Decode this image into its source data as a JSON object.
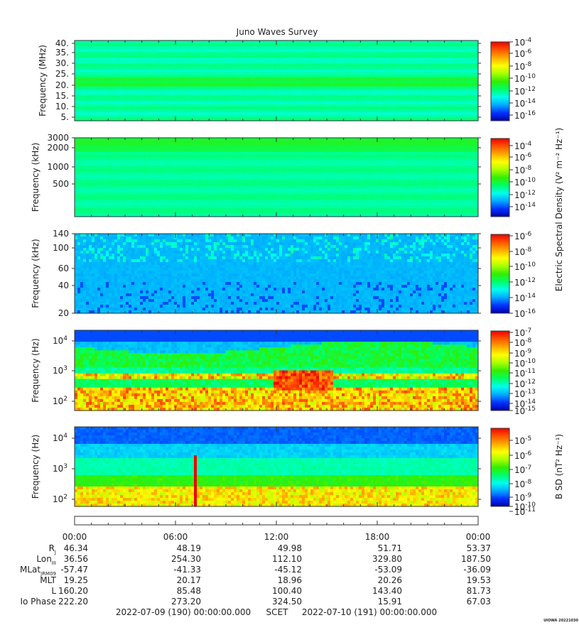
{
  "figure": {
    "title": "Juno Waves Survey",
    "watermark": "UIOWA 20221030",
    "footer": {
      "start": "2022-07-09 (190) 00:00:00.000",
      "label": "SCET",
      "end": "2022-07-10 (191) 00:00:00.000"
    },
    "colorbar_labels": {
      "electric": "Electric Spectral Density (V² m⁻² Hz⁻¹)",
      "magnetic": "B SD (nT² Hz⁻¹)"
    }
  },
  "colors": {
    "scale": [
      "#0000aa",
      "#0033ff",
      "#00aaff",
      "#00ffee",
      "#00ff66",
      "#33ee00",
      "#aaff00",
      "#ffff00",
      "#ffaa00",
      "#ff5500",
      "#ee0000"
    ]
  },
  "chart_data": [
    {
      "type": "heatmap",
      "title": "Juno Waves Survey",
      "ylabel": "Frequency (MHz)",
      "y_ticks": [
        "40.",
        "35.",
        "30.",
        "25.",
        "20.",
        "15.",
        "10.",
        "5."
      ],
      "ylim": [
        3.5,
        41
      ],
      "yscale": "linear",
      "colorbar": {
        "ticks": [
          {
            "base": "10",
            "exp": "-4"
          },
          {
            "base": "10",
            "exp": "-6"
          },
          {
            "base": "10",
            "exp": "-8"
          },
          {
            "base": "10",
            "exp": "-10"
          },
          {
            "base": "10",
            "exp": "-12"
          },
          {
            "base": "10",
            "exp": "-14"
          },
          {
            "base": "10",
            "exp": "-16"
          }
        ],
        "range_exponent": [
          -17,
          -4
        ]
      },
      "background_level": 0.35,
      "features": [
        {
          "desc": "band near 21 MHz",
          "freq": 21,
          "level": 0.45
        }
      ]
    },
    {
      "type": "heatmap",
      "ylabel": "Frequency (kHz)",
      "y_ticks": [
        "3000",
        "2000",
        "1000",
        "500"
      ],
      "yscale": "log",
      "colorbar": {
        "ticks": [
          {
            "base": "10",
            "exp": "-4"
          },
          {
            "base": "10",
            "exp": "-6"
          },
          {
            "base": "10",
            "exp": "-8"
          },
          {
            "base": "10",
            "exp": "-10"
          },
          {
            "base": "10",
            "exp": "-12"
          },
          {
            "base": "10",
            "exp": "-14"
          }
        ],
        "range_exponent": [
          -15,
          -3
        ]
      },
      "background_level": 0.36,
      "features": [
        {
          "desc": "band near 2000 kHz",
          "freq": 2000,
          "level": 0.44
        }
      ]
    },
    {
      "type": "heatmap",
      "ylabel": "Frequency (kHz)",
      "y_ticks": [
        "140",
        "100",
        "60",
        "40",
        "20"
      ],
      "ylim": [
        20,
        140
      ],
      "yscale": "linear",
      "colorbar": {
        "ticks": [
          {
            "base": "10",
            "exp": "-6"
          },
          {
            "base": "10",
            "exp": "-8"
          },
          {
            "base": "10",
            "exp": "-10"
          },
          {
            "base": "10",
            "exp": "-12"
          },
          {
            "base": "10",
            "exp": "-14"
          },
          {
            "base": "10",
            "exp": "-16"
          }
        ],
        "range_exponent": [
          -16,
          -6
        ]
      },
      "background_level": 0.2,
      "features": [
        {
          "desc": "bursts above 80 kHz",
          "level": 0.3
        }
      ]
    },
    {
      "type": "heatmap",
      "ylabel": "Frequency (Hz)",
      "y_ticks": [
        {
          "base": "10",
          "exp": "4"
        },
        {
          "base": "10",
          "exp": "3"
        },
        {
          "base": "10",
          "exp": "2"
        }
      ],
      "ylim": [
        50,
        20000
      ],
      "yscale": "log",
      "colorbar": {
        "ticks": [
          {
            "base": "10",
            "exp": "-7"
          },
          {
            "base": "10",
            "exp": "-8"
          },
          {
            "base": "10",
            "exp": "-9"
          },
          {
            "base": "10",
            "exp": "-10"
          },
          {
            "base": "10",
            "exp": "-11"
          },
          {
            "base": "10",
            "exp": "-12"
          },
          {
            "base": "10",
            "exp": "-13"
          },
          {
            "base": "10",
            "exp": "-14"
          },
          {
            "base": "10",
            "exp": "-15"
          }
        ],
        "range_exponent": [
          -15,
          -7
        ]
      },
      "features": [
        {
          "desc": "intense emission below 300 Hz",
          "level": 0.85
        },
        {
          "desc": "band near 700 Hz",
          "freq": 700,
          "level": 0.75
        },
        {
          "desc": "bursts near 500 Hz around 13:00-15:00",
          "level": 0.95
        }
      ]
    },
    {
      "type": "heatmap",
      "ylabel": "Frequency (Hz)",
      "y_ticks": [
        {
          "base": "10",
          "exp": "4"
        },
        {
          "base": "10",
          "exp": "3"
        },
        {
          "base": "10",
          "exp": "2"
        }
      ],
      "ylim": [
        50,
        20000
      ],
      "yscale": "log",
      "colorbar": {
        "ticks": [
          {
            "base": "10",
            "exp": "-5"
          },
          {
            "base": "10",
            "exp": "-6"
          },
          {
            "base": "10",
            "exp": "-7"
          },
          {
            "base": "10",
            "exp": "-8"
          },
          {
            "base": "10",
            "exp": "-9"
          },
          {
            "base": "10",
            "exp": "-10"
          },
          {
            "base": "10",
            "exp": "-11"
          }
        ],
        "range_exponent": [
          -11,
          -5
        ]
      },
      "features": [
        {
          "desc": "intense emission below 250 Hz",
          "level": 0.75
        },
        {
          "desc": "spike near 07:00",
          "level": 1.0
        }
      ]
    }
  ],
  "time_axis": {
    "ticks": [
      "00:00",
      "06:00",
      "12:00",
      "18:00",
      "00:00"
    ],
    "rows": [
      {
        "label": "R",
        "sub": "J",
        "values": [
          "46.34",
          "48.19",
          "49.98",
          "51.71",
          "53.37"
        ]
      },
      {
        "label": "Lon",
        "sub": "III",
        "values": [
          "36.56",
          "254.30",
          "112.10",
          "329.80",
          "187.50"
        ]
      },
      {
        "label": "MLat",
        "sub": "JRM09",
        "values": [
          "-57.47",
          "-41.33",
          "-45.12",
          "-53.09",
          "-36.09"
        ]
      },
      {
        "label": "MLT",
        "sub": "",
        "values": [
          "19.25",
          "20.17",
          "18.96",
          "20.26",
          "19.53"
        ]
      },
      {
        "label": "L",
        "sub": "",
        "values": [
          "160.20",
          "85.48",
          "100.40",
          "143.40",
          "81.73"
        ]
      },
      {
        "label": "Io Phase",
        "sub": "",
        "values": [
          "222.20",
          "273.20",
          "324.50",
          "15.91",
          "67.03"
        ]
      }
    ]
  }
}
